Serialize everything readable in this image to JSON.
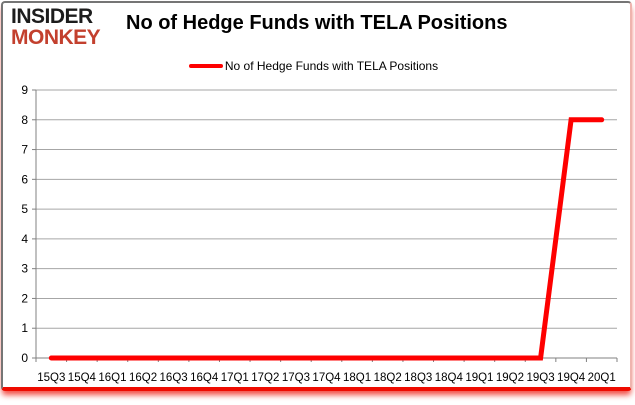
{
  "header": {
    "logo_line1": "INSIDER",
    "logo_line2": "MONKEY",
    "title": "No of Hedge Funds with TELA Positions"
  },
  "legend": {
    "label": "No of Hedge Funds with TELA Positions"
  },
  "colors": {
    "series": "#fe0000",
    "logo_black": "#1c1c1c",
    "logo_red": "#c3402e",
    "grid": "#a6a6a6",
    "axis": "#808080",
    "text": "#000000",
    "bottom_glow": "#ee0b00"
  },
  "chart_data": {
    "type": "line",
    "title": "No of Hedge Funds with TELA Positions",
    "categories": [
      "15Q3",
      "15Q4",
      "16Q1",
      "16Q2",
      "16Q3",
      "16Q4",
      "17Q1",
      "17Q2",
      "17Q3",
      "17Q4",
      "18Q1",
      "18Q2",
      "18Q3",
      "18Q4",
      "19Q1",
      "19Q2",
      "19Q3",
      "19Q4",
      "20Q1"
    ],
    "series": [
      {
        "name": "No of Hedge Funds with TELA Positions",
        "values": [
          0,
          0,
          0,
          0,
          0,
          0,
          0,
          0,
          0,
          0,
          0,
          0,
          0,
          0,
          0,
          0,
          0,
          8,
          8
        ]
      }
    ],
    "xlabel": "",
    "ylabel": "",
    "ylim": [
      0,
      9
    ],
    "ytick_step": 1,
    "grid": true,
    "legend_position": "top"
  }
}
